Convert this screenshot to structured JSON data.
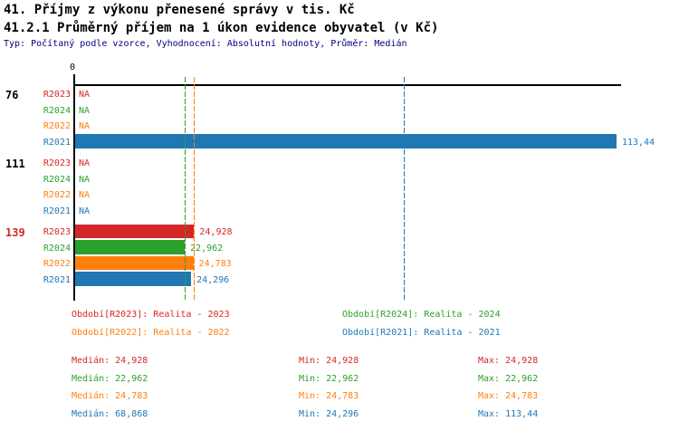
{
  "header": {
    "title1": "41. Příjmy z výkonu přenesené správy v tis. Kč",
    "title2": "41.2.1 Průměrný příjem na 1 úkon evidence obyvatel (v Kč)",
    "subtitle": "Typ: Počítaný podle vzorce, Vyhodnocení: Absolutní hodnoty, Průměr: Medián"
  },
  "colors": {
    "title": "#000000",
    "subtitle": "#000080",
    "axis": "#000000",
    "R2023": "#d62728",
    "R2024": "#2ca02c",
    "R2022": "#ff7f0e",
    "R2021": "#1f77b4"
  },
  "chart_data": {
    "type": "bar",
    "orientation": "horizontal",
    "value_axis": {
      "origin_label": "0",
      "max": 114.4,
      "grid": false
    },
    "na_text": "NA",
    "series": [
      {
        "id": "R2023",
        "label": "R2023",
        "color": "#d62728",
        "legend": "Období[R2023]: Realita - 2023",
        "median": 24.928,
        "median_label": "24,928",
        "min_label": "24,928",
        "max_label": "24,928"
      },
      {
        "id": "R2024",
        "label": "R2024",
        "color": "#2ca02c",
        "legend": "Období[R2024]: Realita - 2024",
        "median": 22.962,
        "median_label": "22,962",
        "min_label": "22,962",
        "max_label": "22,962"
      },
      {
        "id": "R2022",
        "label": "R2022",
        "color": "#ff7f0e",
        "legend": "Období[R2022]: Realita - 2022",
        "median": 24.783,
        "median_label": "24,783",
        "min_label": "24,783",
        "max_label": "24,783"
      },
      {
        "id": "R2021",
        "label": "R2021",
        "color": "#1f77b4",
        "legend": "Období[R2021]: Realita - 2021",
        "median": 68.868,
        "median_label": "68,868",
        "min_label": "24,296",
        "max_label": "113,44"
      }
    ],
    "groups": [
      {
        "label": "76",
        "label_color": "#000000",
        "bars": [
          {
            "series": "R2023",
            "value": null,
            "text": "NA"
          },
          {
            "series": "R2024",
            "value": null,
            "text": "NA"
          },
          {
            "series": "R2022",
            "value": null,
            "text": "NA"
          },
          {
            "series": "R2021",
            "value": 113.44,
            "text": "113,44"
          }
        ]
      },
      {
        "label": "111",
        "label_color": "#000000",
        "bars": [
          {
            "series": "R2023",
            "value": null,
            "text": "NA"
          },
          {
            "series": "R2024",
            "value": null,
            "text": "NA"
          },
          {
            "series": "R2022",
            "value": null,
            "text": "NA"
          },
          {
            "series": "R2021",
            "value": null,
            "text": "NA"
          }
        ]
      },
      {
        "label": "139",
        "label_color": "#d62728",
        "bars": [
          {
            "series": "R2023",
            "value": 24.928,
            "text": "24,928"
          },
          {
            "series": "R2024",
            "value": 22.962,
            "text": "22,962"
          },
          {
            "series": "R2022",
            "value": 24.783,
            "text": "24,783"
          },
          {
            "series": "R2021",
            "value": 24.296,
            "text": "24,296"
          }
        ]
      }
    ],
    "stats_labels": {
      "median": "Medián:",
      "min": "Min:",
      "max": "Max:"
    }
  }
}
